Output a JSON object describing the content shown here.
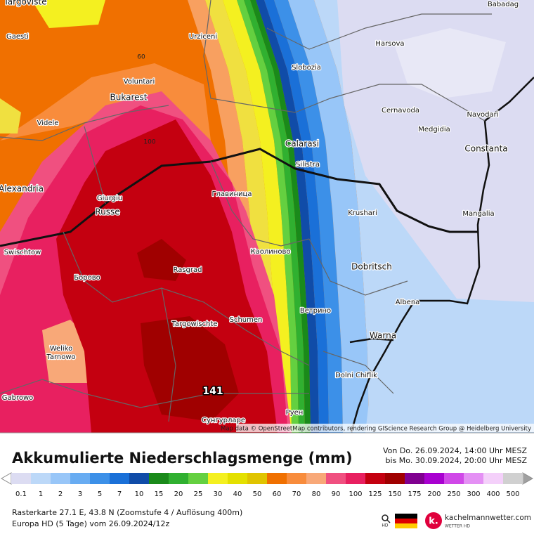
{
  "map": {
    "labels": [
      "Targoviste",
      "Gaesti",
      "Urziceni",
      "Slobozia",
      "Harsova",
      "Babadag",
      "Voluntari",
      "Bukarest",
      "Videle",
      "Cernavoda",
      "Navodari",
      "Medgidia",
      "Calarasi",
      "Silistra",
      "Constanta",
      "Alexandria",
      "Giurgiu",
      "Russe",
      "Главиница",
      "Krushari",
      "Mangalia",
      "Swischtow",
      "Каолиново",
      "Борово",
      "Rasgrad",
      "Dobritsch",
      "Albena",
      "Targowischte",
      "Schumen",
      "Ветрино",
      "Warna",
      "Weliko",
      "Tarnowo",
      "Dolni Chiflik",
      "Gabrowo",
      "Сунгурларе",
      "Руен"
    ],
    "contour_labels": [
      "60",
      "100"
    ],
    "max_label": "141",
    "attribution": "Map data © OpenStreetMap contributors, rendering GIScience Research Group @ Heidelberg University"
  },
  "footer": {
    "title": "Akkumulierte Niederschlagsmenge (mm)",
    "period": [
      "Von Do. 26.09.2024, 14:00 Uhr MESZ",
      "bis Mo. 30.09.2024, 20:00 Uhr MESZ"
    ],
    "legend": {
      "items": [
        {
          "value": 0.1,
          "color": "#dcdcf2"
        },
        {
          "value": 1,
          "color": "#bcd8f8"
        },
        {
          "value": 2,
          "color": "#98c6f8"
        },
        {
          "value": 3,
          "color": "#68acf2"
        },
        {
          "value": 5,
          "color": "#3c90e8"
        },
        {
          "value": 7,
          "color": "#1a70d8"
        },
        {
          "value": 10,
          "color": "#104ca8"
        },
        {
          "value": 15,
          "color": "#1a8a1a"
        },
        {
          "value": 20,
          "color": "#30b030"
        },
        {
          "value": 25,
          "color": "#64d040"
        },
        {
          "value": 30,
          "color": "#f4f020"
        },
        {
          "value": 40,
          "color": "#e4e000"
        },
        {
          "value": 50,
          "color": "#e0c400"
        },
        {
          "value": 60,
          "color": "#f07000"
        },
        {
          "value": 70,
          "color": "#f88c3c"
        },
        {
          "value": 80,
          "color": "#f8a878"
        },
        {
          "value": 90,
          "color": "#f05080"
        },
        {
          "value": 100,
          "color": "#e82060"
        },
        {
          "value": 125,
          "color": "#c40010"
        },
        {
          "value": 150,
          "color": "#a00000"
        },
        {
          "value": 175,
          "color": "#800090"
        },
        {
          "value": 200,
          "color": "#a800d0"
        },
        {
          "value": 250,
          "color": "#d048e8"
        },
        {
          "value": 300,
          "color": "#e490f4"
        },
        {
          "value": 400,
          "color": "#f4d0fa"
        },
        {
          "value": 500,
          "color": "#d0d0d0"
        }
      ]
    },
    "info": [
      "Rasterkarte 27.1 E, 43.8 N (Zoomstufe 4 / Auflösung 400m)",
      "Europa HD (5 Tage) vom  26.09.2024/12z"
    ],
    "logo": {
      "hd": "HD",
      "site": "kachelmannwetter.com",
      "tagline": "WETTER HD",
      "initial": "k."
    }
  }
}
